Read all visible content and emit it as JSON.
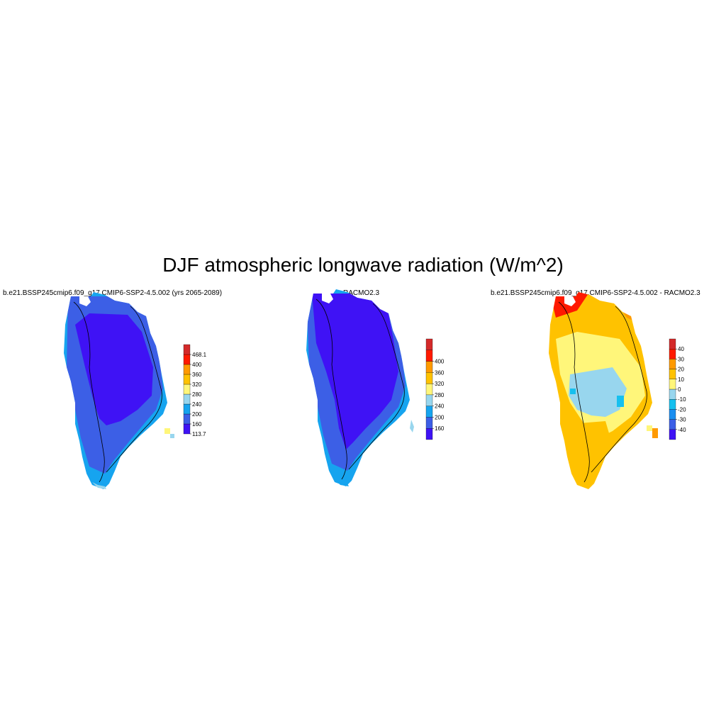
{
  "figure": {
    "title": "DJF atmospheric longwave radiation (W/m^2)"
  },
  "panels": [
    {
      "title": "b.e21.BSSP245cmip6.f09_g17.CMIP6-SSP2-4.5.002 (yrs 2065-2089)",
      "colorbar": {
        "colors": [
          "#3f12f5",
          "#3c5fe6",
          "#16a4ef",
          "#98d6ee",
          "#fff67a",
          "#ffc200",
          "#ff9a00",
          "#ff1a00",
          "#d42a2a"
        ],
        "labels": [
          "113.7",
          "160",
          "200",
          "240",
          "280",
          "320",
          "360",
          "400",
          "468.1"
        ]
      }
    },
    {
      "title": "RACMO2.3",
      "colorbar": {
        "colors": [
          "#3f12f5",
          "#3c5fe6",
          "#16a4ef",
          "#98d6ee",
          "#fff67a",
          "#ffc200",
          "#ff9a00",
          "#ff1a00",
          "#d42a2a"
        ],
        "labels": [
          "160",
          "200",
          "240",
          "280",
          "320",
          "360",
          "400"
        ]
      }
    },
    {
      "title": "b.e21.BSSP245cmip6.f09_g17.CMIP6-SSP2-4.5.002 - RACMO2.3",
      "colorbar": {
        "colors": [
          "#3f12f5",
          "#3c5fe6",
          "#1a8ef0",
          "#16c0ef",
          "#98d6ee",
          "#fff67a",
          "#ffc200",
          "#ff9a00",
          "#ff1a00",
          "#d42a2a"
        ],
        "labels": [
          "-40",
          "-30",
          "-20",
          "-10",
          "0",
          "10",
          "20",
          "30",
          "40"
        ]
      }
    }
  ]
}
